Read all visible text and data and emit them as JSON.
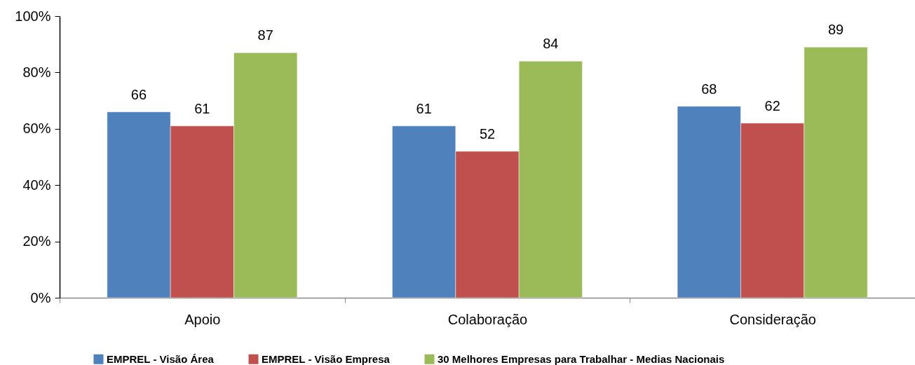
{
  "chart_data": {
    "type": "bar",
    "categories": [
      "Apoio",
      "Colaboração",
      "Consideração"
    ],
    "series": [
      {
        "name": "EMPREL - Visão Área",
        "color": "#4f81bd",
        "values": [
          66,
          61,
          68
        ]
      },
      {
        "name": "EMPREL - Visão Empresa",
        "color": "#c0504d",
        "values": [
          61,
          52,
          62
        ]
      },
      {
        "name": "30 Melhores Empresas para Trabalhar - Medias Nacionais",
        "color": "#9bbb59",
        "values": [
          87,
          84,
          89
        ]
      }
    ],
    "ylim": [
      0,
      100
    ],
    "yticks": [
      {
        "value": 0,
        "label": "0%"
      },
      {
        "value": 20,
        "label": "20%"
      },
      {
        "value": 40,
        "label": "40%"
      },
      {
        "value": 60,
        "label": "60%"
      },
      {
        "value": 80,
        "label": "80%"
      },
      {
        "value": 100,
        "label": "100%"
      }
    ],
    "data_labels": true,
    "legend": "bottom",
    "grid": false
  }
}
